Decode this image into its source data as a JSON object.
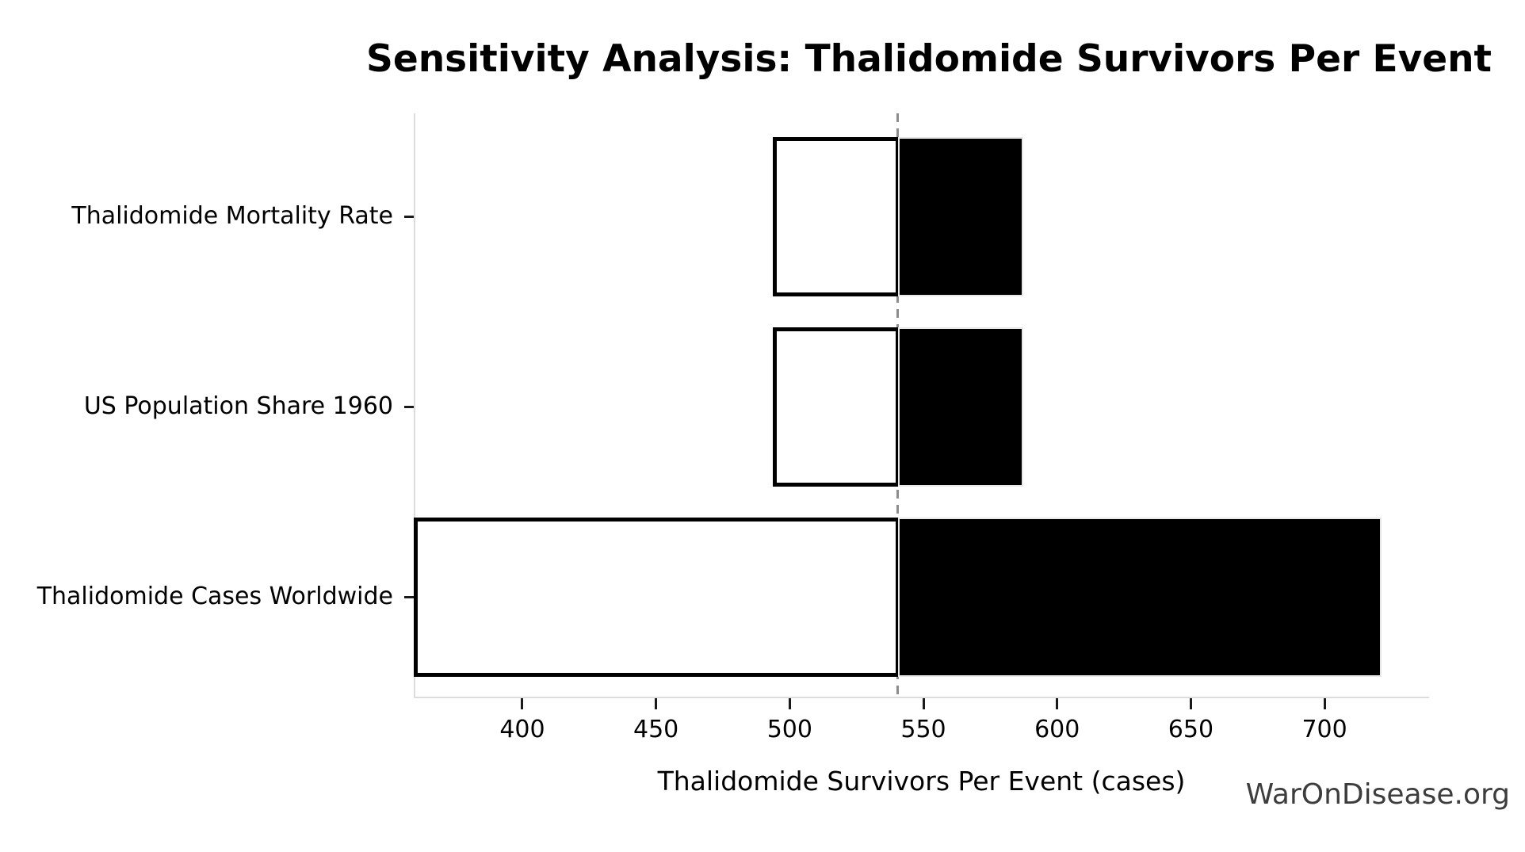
{
  "watermark": "WarOnDisease.org",
  "chart_data": {
    "type": "bar",
    "subtype": "tornado-sensitivity",
    "orientation": "horizontal",
    "title": "Sensitivity Analysis: Thalidomide Survivors Per Event",
    "xlabel": "Thalidomide Survivors Per Event (cases)",
    "ylabel": "",
    "grid": false,
    "legend": null,
    "baseline": 540.5,
    "xlim": [
      360,
      738.5
    ],
    "xticks": [
      400,
      450,
      500,
      550,
      600,
      650,
      700
    ],
    "categories": [
      "Thalidomide Mortality Rate",
      "US Population Share 1960",
      "Thalidomide Cases Worldwide"
    ],
    "bars": [
      {
        "label": "Thalidomide Mortality Rate",
        "low": 494.5,
        "high": 586.5
      },
      {
        "label": "US Population Share 1960",
        "low": 494.5,
        "high": 586.5
      },
      {
        "label": "Thalidomide Cases Worldwide",
        "low": 360.0,
        "high": 720.5
      }
    ],
    "colors": {
      "low_fill": "#ffffff",
      "low_edge": "#000000",
      "high_fill": "#000000",
      "baseline_line": "#8c8c8c",
      "spine": "#dcdcdc",
      "tick": "#1a1a1a",
      "watermark_text": "#3d3d3d"
    },
    "baseline_style": {
      "dashed": true
    }
  }
}
